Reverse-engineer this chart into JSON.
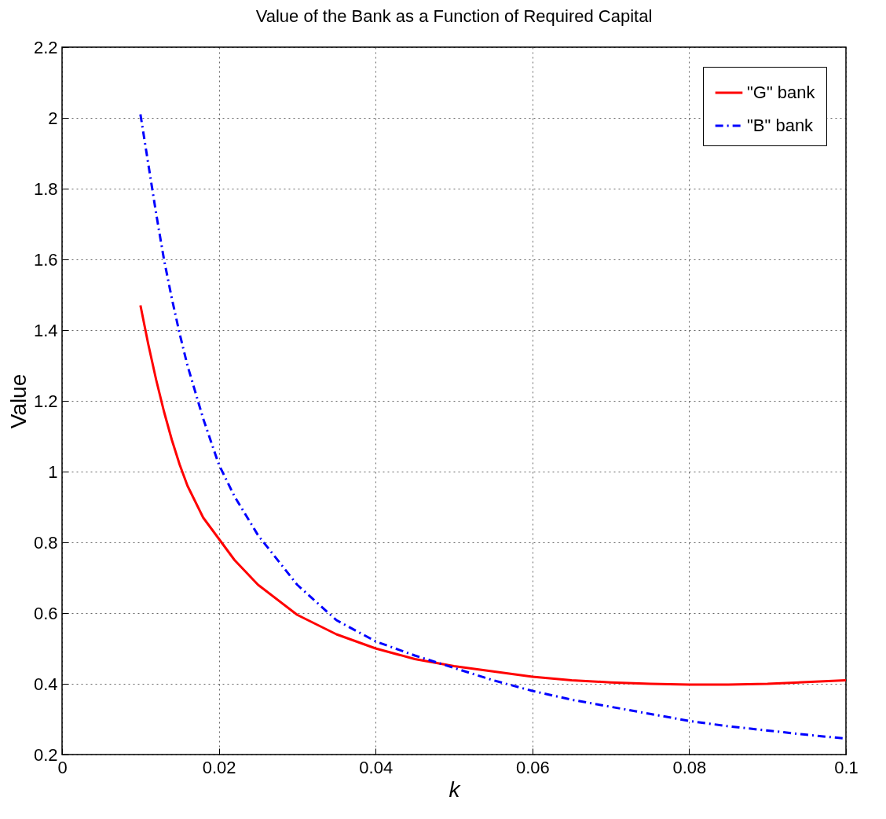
{
  "chart_data": {
    "type": "line",
    "title": "Value of the Bank as a Function of Required Capital",
    "xlabel": "k",
    "ylabel": "Value",
    "x": [
      0.01,
      0.011,
      0.012,
      0.013,
      0.014,
      0.015,
      0.016,
      0.018,
      0.02,
      0.022,
      0.025,
      0.03,
      0.035,
      0.04,
      0.045,
      0.05,
      0.055,
      0.06,
      0.065,
      0.07,
      0.075,
      0.08,
      0.085,
      0.09,
      0.095,
      0.1
    ],
    "series": [
      {
        "name": "\"G\" bank",
        "color": "#ff0000",
        "line_style": "solid",
        "values": [
          1.47,
          1.36,
          1.26,
          1.17,
          1.09,
          1.02,
          0.96,
          0.87,
          0.81,
          0.75,
          0.68,
          0.595,
          0.54,
          0.5,
          0.47,
          0.45,
          0.435,
          0.42,
          0.41,
          0.404,
          0.4,
          0.398,
          0.398,
          0.4,
          0.405,
          0.41
        ]
      },
      {
        "name": "\"B\" bank",
        "color": "#0000ff",
        "line_style": "dashed",
        "values": [
          2.01,
          1.87,
          1.73,
          1.6,
          1.49,
          1.39,
          1.3,
          1.15,
          1.02,
          0.93,
          0.82,
          0.68,
          0.58,
          0.52,
          0.48,
          0.445,
          0.41,
          0.38,
          0.355,
          0.335,
          0.315,
          0.295,
          0.28,
          0.268,
          0.256,
          0.245
        ]
      }
    ],
    "xlim": [
      0,
      0.1
    ],
    "xticks": [
      0,
      0.02,
      0.04,
      0.06,
      0.08,
      0.1
    ],
    "ylim": [
      0.2,
      2.2
    ],
    "yticks": [
      0.2,
      0.4,
      0.6,
      0.8,
      1,
      1.2,
      1.4,
      1.6,
      1.8,
      2,
      2.2
    ],
    "grid": true,
    "legend": "top right",
    "marker": "none"
  }
}
